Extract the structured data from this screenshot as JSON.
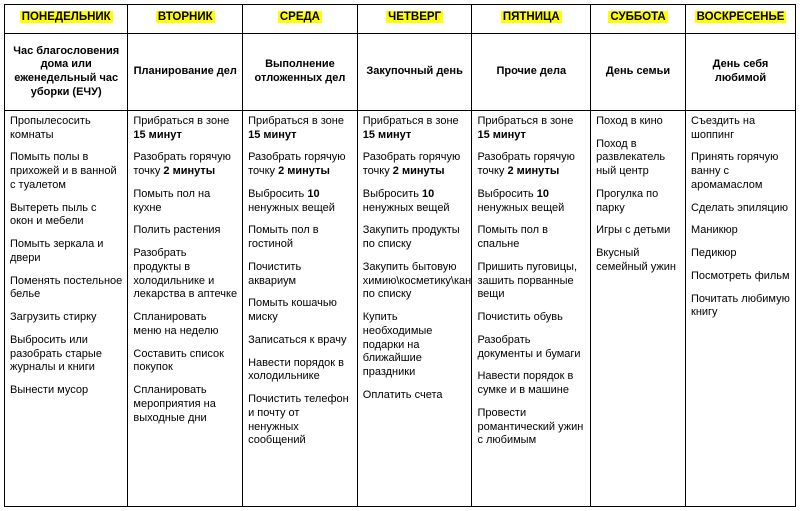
{
  "table": {
    "column_widths_pct": [
      15.6,
      14.5,
      14.5,
      14.5,
      15.0,
      12.0,
      13.9
    ],
    "border_color": "#000000",
    "background": "#ffffff",
    "highlight_color": "#ffff00",
    "font_family": "Arial",
    "header_font_size_pt": 8.6,
    "subheader_font_size_pt": 8.3,
    "body_font_size_pt": 8.3,
    "days": [
      {
        "name": "ПОНЕДЕЛЬНИК",
        "subtitle": "Час благословения дома или еженедельный час уборки (ЕЧУ)",
        "tasks": [
          [
            {
              "t": "Пропылесосить комнаты"
            }
          ],
          [
            {
              "t": "Помыть полы в прихожей и в ванной с туалетом"
            }
          ],
          [
            {
              "t": "Вытереть пыль с окон и мебели"
            }
          ],
          [
            {
              "t": "Помыть зеркала и двери"
            }
          ],
          [
            {
              "t": "Поменять постельное белье"
            }
          ],
          [
            {
              "t": "Загрузить стирку"
            }
          ],
          [
            {
              "t": "Выбросить или разобрать старые журналы и книги"
            }
          ],
          [
            {
              "t": "Вынести мусор"
            }
          ]
        ]
      },
      {
        "name": "ВТОРНИК",
        "subtitle": "Планирование дел",
        "tasks": [
          [
            {
              "t": "Прибраться в зоне "
            },
            {
              "t": "15 минут",
              "b": true
            }
          ],
          [
            {
              "t": "Разобрать горячую точку "
            },
            {
              "t": "2 минуты",
              "b": true
            }
          ],
          [
            {
              "t": "Помыть пол на кухне"
            }
          ],
          [
            {
              "t": "Полить растения"
            }
          ],
          [
            {
              "t": "Разобрать продукты в холодильнике и лекарства в аптечке"
            }
          ],
          [
            {
              "t": "Спланировать меню на неделю"
            }
          ],
          [
            {
              "t": "Составить список покупок"
            }
          ],
          [
            {
              "t": "Спланировать мероприятия на выходные дни"
            }
          ]
        ]
      },
      {
        "name": "СРЕДА",
        "subtitle": "Выполнение отложенных дел",
        "tasks": [
          [
            {
              "t": "Прибраться в зоне "
            },
            {
              "t": "15 минут",
              "b": true
            }
          ],
          [
            {
              "t": "Разобрать горячую точку "
            },
            {
              "t": "2 минуты",
              "b": true
            }
          ],
          [
            {
              "t": "Выбросить "
            },
            {
              "t": "10",
              "b": true
            },
            {
              "t": " ненужных вещей"
            }
          ],
          [
            {
              "t": "Помыть пол в гостиной"
            }
          ],
          [
            {
              "t": "Почистить аквариум"
            }
          ],
          [
            {
              "t": "Помыть кошачью миску"
            }
          ],
          [
            {
              "t": "Записаться к врачу"
            }
          ],
          [
            {
              "t": "Навести порядок в холодильнике"
            }
          ],
          [
            {
              "t": "Почистить телефон и почту от ненужных сообщений"
            }
          ]
        ]
      },
      {
        "name": "ЧЕТВЕРГ",
        "subtitle": "Закупочный день",
        "tasks": [
          [
            {
              "t": "Прибраться в зоне "
            },
            {
              "t": "15 минут",
              "b": true
            }
          ],
          [
            {
              "t": "Разобрать горячую точку "
            },
            {
              "t": "2 минуты",
              "b": true
            }
          ],
          [
            {
              "t": "Выбросить "
            },
            {
              "t": "10",
              "b": true
            },
            {
              "t": " ненужных вещей"
            }
          ],
          [
            {
              "t": "Закупить продукты по списку"
            }
          ],
          [
            {
              "t": "Закупить бытовую химию\\косметику\\канцелярию по списку"
            }
          ],
          [
            {
              "t": "Купить необходимые подарки на ближайшие праздники"
            }
          ],
          [
            {
              "t": "Оплатить счета"
            }
          ]
        ]
      },
      {
        "name": "ПЯТНИЦА",
        "subtitle": "Прочие дела",
        "tasks": [
          [
            {
              "t": "Прибраться в зоне "
            },
            {
              "t": "15 минут",
              "b": true
            }
          ],
          [
            {
              "t": "Разобрать горячую точку "
            },
            {
              "t": "2 минуты",
              "b": true
            }
          ],
          [
            {
              "t": "Выбросить "
            },
            {
              "t": "10",
              "b": true
            },
            {
              "t": " ненужных вещей"
            }
          ],
          [
            {
              "t": "Помыть пол в спальне"
            }
          ],
          [
            {
              "t": "Пришить пуговицы, зашить порванные вещи"
            }
          ],
          [
            {
              "t": "Почистить обувь"
            }
          ],
          [
            {
              "t": "Разобрать документы и бумаги"
            }
          ],
          [
            {
              "t": "Навести порядок в сумке и в машине"
            }
          ],
          [
            {
              "t": "Провести романтический ужин с любимым"
            }
          ]
        ]
      },
      {
        "name": "СУББОТА",
        "subtitle": "День семьи",
        "tasks": [
          [
            {
              "t": "Поход в кино"
            }
          ],
          [
            {
              "t": "Поход в развлекатель ный центр"
            }
          ],
          [
            {
              "t": "Прогулка по парку"
            }
          ],
          [
            {
              "t": "Игры с детьми"
            }
          ],
          [
            {
              "t": "Вкусный семейный ужин"
            }
          ]
        ]
      },
      {
        "name": "ВОСКРЕСЕНЬЕ",
        "subtitle": "День себя любимой",
        "tasks": [
          [
            {
              "t": "Съездить на шоппинг"
            }
          ],
          [
            {
              "t": "Принять горячую ванну с аромамаслом"
            }
          ],
          [
            {
              "t": "Сделать эпиляцию"
            }
          ],
          [
            {
              "t": "Маникюр"
            }
          ],
          [
            {
              "t": "Педикюр"
            }
          ],
          [
            {
              "t": "Посмотреть фильм"
            }
          ],
          [
            {
              "t": "Почитать любимую книгу"
            }
          ]
        ]
      }
    ]
  }
}
